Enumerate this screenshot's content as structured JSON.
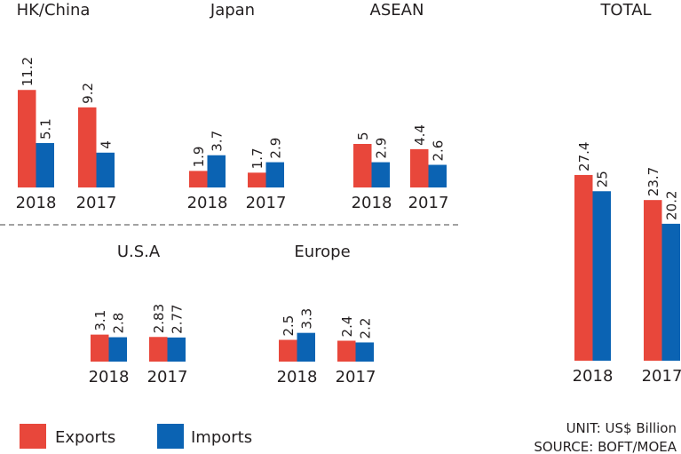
{
  "chart_data": {
    "type": "bar",
    "legend": {
      "position": "bottom-left",
      "entries": [
        "Exports",
        "Imports"
      ]
    },
    "colors": {
      "Exports": "#e8473b",
      "Imports": "#0b63b3"
    },
    "unit": "UNIT: US$ Billion",
    "source": "SOURCE: BOFT/MOEA",
    "categories": [
      "2018",
      "2017"
    ],
    "groups": [
      {
        "title": "HK/China",
        "series": [
          {
            "name": "Exports",
            "values": [
              11.2,
              9.2
            ]
          },
          {
            "name": "Imports",
            "values": [
              5.1,
              4
            ]
          }
        ]
      },
      {
        "title": "Japan",
        "series": [
          {
            "name": "Exports",
            "values": [
              1.9,
              1.7
            ]
          },
          {
            "name": "Imports",
            "values": [
              3.7,
              2.9
            ]
          }
        ]
      },
      {
        "title": "ASEAN",
        "series": [
          {
            "name": "Exports",
            "values": [
              5,
              4.4
            ]
          },
          {
            "name": "Imports",
            "values": [
              2.9,
              2.6
            ]
          }
        ]
      },
      {
        "title": "U.S.A",
        "series": [
          {
            "name": "Exports",
            "values": [
              3.1,
              2.83
            ]
          },
          {
            "name": "Imports",
            "values": [
              2.8,
              2.77
            ]
          }
        ]
      },
      {
        "title": "Europe",
        "series": [
          {
            "name": "Exports",
            "values": [
              2.5,
              2.4
            ]
          },
          {
            "name": "Imports",
            "values": [
              3.3,
              2.2
            ]
          }
        ]
      },
      {
        "title": "TOTAL",
        "series": [
          {
            "name": "Exports",
            "values": [
              27.4,
              23.7
            ]
          },
          {
            "name": "Imports",
            "values": [
              25,
              20.2
            ]
          }
        ]
      }
    ]
  }
}
